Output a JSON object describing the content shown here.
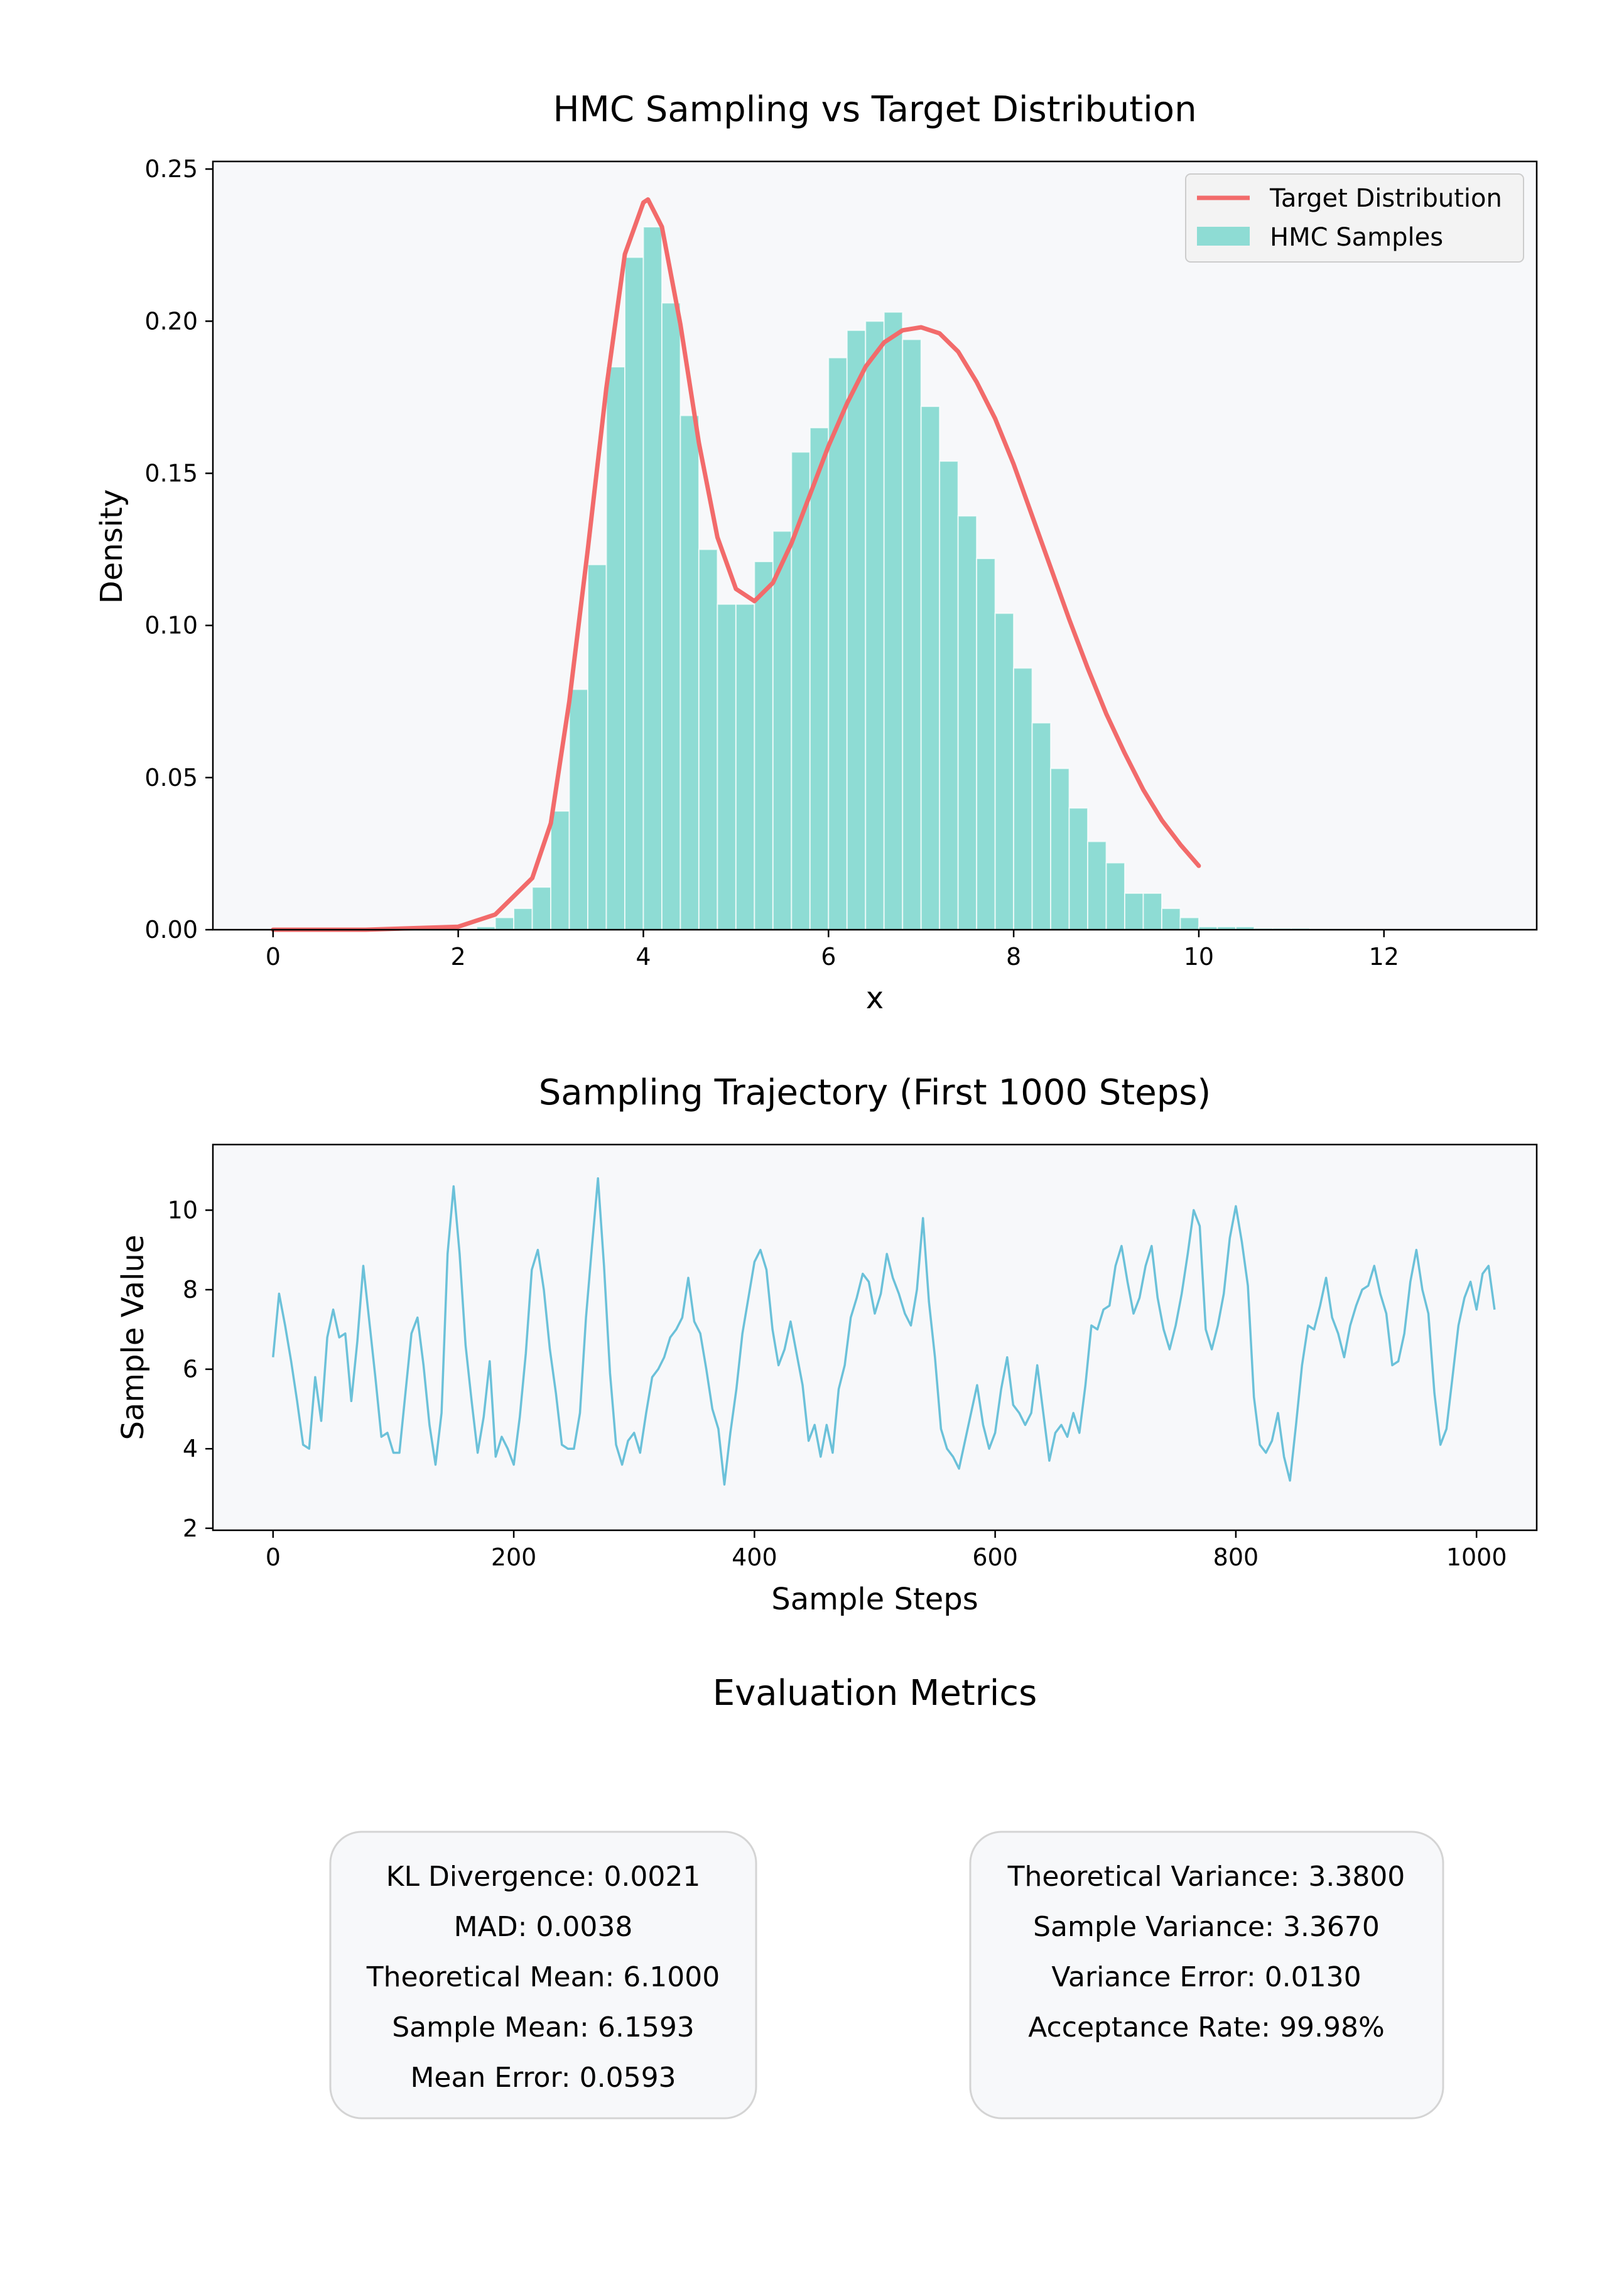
{
  "chart_data": [
    {
      "type": "bar",
      "title": "HMC Sampling vs Target Distribution",
      "xlabel": "x",
      "ylabel": "Density",
      "xlim": [
        -0.65,
        13.65
      ],
      "ylim": [
        0,
        0.2525
      ],
      "xticks": [
        0,
        2,
        4,
        6,
        8,
        10,
        12
      ],
      "yticks": [
        0.0,
        0.05,
        0.1,
        0.15,
        0.2,
        0.25
      ],
      "grid": false,
      "legend": {
        "placement": "top-right",
        "entries": [
          "Target Distribution",
          "HMC Samples"
        ]
      },
      "colors": {
        "histogram": "#8edcd4",
        "target": "#f26b6b",
        "axes_bg": "#f7f8fa"
      },
      "histogram": {
        "name": "HMC Samples",
        "bin_edges": [
          2.2,
          2.4,
          2.6,
          2.8,
          3.0,
          3.2,
          3.4,
          3.6,
          3.8,
          4.0,
          4.2,
          4.4,
          4.6,
          4.8,
          5.0,
          5.2,
          5.4,
          5.6,
          5.8,
          6.0,
          6.2,
          6.4,
          6.6,
          6.8,
          7.0,
          7.2,
          7.4,
          7.6,
          7.8,
          8.0,
          8.2,
          8.4,
          8.6,
          8.8,
          9.0,
          9.2,
          9.4,
          9.6,
          9.8,
          10.0,
          10.2,
          10.4,
          10.6,
          10.8,
          11.0,
          11.2,
          11.4,
          11.6,
          11.8,
          12.0
        ],
        "density": [
          0.001,
          0.004,
          0.007,
          0.014,
          0.039,
          0.079,
          0.12,
          0.185,
          0.221,
          0.231,
          0.206,
          0.169,
          0.125,
          0.107,
          0.107,
          0.121,
          0.131,
          0.157,
          0.165,
          0.188,
          0.197,
          0.2,
          0.203,
          0.194,
          0.172,
          0.154,
          0.136,
          0.122,
          0.104,
          0.086,
          0.068,
          0.053,
          0.04,
          0.029,
          0.022,
          0.012,
          0.012,
          0.007,
          0.004,
          0.001,
          0.001,
          0.001,
          0.0005,
          0.0005,
          0.0005,
          0.0003,
          0.0003,
          0.0003,
          0.0002
        ]
      },
      "target": {
        "name": "Target Distribution",
        "x": [
          0.0,
          1.0,
          2.0,
          2.4,
          2.8,
          3.0,
          3.2,
          3.4,
          3.6,
          3.8,
          4.0,
          4.05,
          4.2,
          4.4,
          4.6,
          4.8,
          5.0,
          5.2,
          5.4,
          5.6,
          5.8,
          6.0,
          6.2,
          6.4,
          6.6,
          6.8,
          7.0,
          7.2,
          7.4,
          7.6,
          7.8,
          8.0,
          8.2,
          8.4,
          8.6,
          8.8,
          9.0,
          9.2,
          9.4,
          9.6,
          9.8,
          10.0
        ],
        "y": [
          0.0,
          0.0,
          0.001,
          0.005,
          0.017,
          0.035,
          0.075,
          0.125,
          0.178,
          0.222,
          0.239,
          0.24,
          0.231,
          0.199,
          0.16,
          0.129,
          0.112,
          0.108,
          0.114,
          0.127,
          0.143,
          0.159,
          0.173,
          0.185,
          0.193,
          0.197,
          0.198,
          0.196,
          0.19,
          0.18,
          0.168,
          0.153,
          0.136,
          0.119,
          0.102,
          0.086,
          0.071,
          0.058,
          0.046,
          0.036,
          0.028,
          0.021
        ]
      }
    },
    {
      "type": "line",
      "title": "Sampling Trajectory (First 1000 Steps)",
      "xlabel": "Sample Steps",
      "ylabel": "Sample Value",
      "xlim": [
        -50,
        1050
      ],
      "ylim": [
        1.95,
        11.65
      ],
      "xticks": [
        0,
        200,
        400,
        600,
        800,
        1000
      ],
      "yticks": [
        2,
        4,
        6,
        8,
        10
      ],
      "grid": false,
      "colors": {
        "line": "#6bc1d9",
        "axes_bg": "#f7f8fa"
      },
      "x_step": 5,
      "values": [
        6.3,
        7.9,
        7.1,
        6.2,
        5.2,
        4.1,
        4.0,
        5.8,
        4.7,
        6.8,
        7.5,
        6.8,
        6.9,
        5.2,
        6.7,
        8.6,
        7.2,
        5.8,
        4.3,
        4.4,
        3.9,
        3.9,
        5.4,
        6.9,
        7.3,
        6.1,
        4.6,
        3.6,
        4.9,
        8.9,
        10.6,
        8.9,
        6.6,
        5.2,
        3.9,
        4.8,
        6.2,
        3.8,
        4.3,
        4.0,
        3.6,
        4.8,
        6.4,
        8.5,
        9.0,
        8.0,
        6.5,
        5.4,
        4.1,
        4.0,
        4.0,
        4.9,
        7.3,
        9.1,
        10.8,
        8.6,
        5.9,
        4.1,
        3.6,
        4.2,
        4.4,
        3.9,
        4.9,
        5.8,
        6.0,
        6.3,
        6.8,
        7.0,
        7.3,
        8.3,
        7.2,
        6.9,
        6.0,
        5.0,
        4.5,
        3.1,
        4.4,
        5.5,
        6.9,
        7.8,
        8.7,
        9.0,
        8.5,
        7.0,
        6.1,
        6.5,
        7.2,
        6.4,
        5.6,
        4.2,
        4.6,
        3.8,
        4.6,
        3.9,
        5.5,
        6.1,
        7.3,
        7.8,
        8.4,
        8.2,
        7.4,
        7.9,
        8.9,
        8.3,
        7.9,
        7.4,
        7.1,
        8.0,
        9.8,
        7.7,
        6.3,
        4.5,
        4.0,
        3.8,
        3.5,
        4.2,
        4.9,
        5.6,
        4.6,
        4.0,
        4.4,
        5.5,
        6.3,
        5.1,
        4.9,
        4.6,
        4.9,
        6.1,
        4.9,
        3.7,
        4.4,
        4.6,
        4.3,
        4.9,
        4.4,
        5.6,
        7.1,
        7.0,
        7.5,
        7.6,
        8.6,
        9.1,
        8.2,
        7.4,
        7.8,
        8.6,
        9.1,
        7.8,
        7.0,
        6.5,
        7.1,
        7.9,
        8.9,
        10.0,
        9.6,
        7.0,
        6.5,
        7.1,
        7.9,
        9.3,
        10.1,
        9.2,
        8.1,
        5.3,
        4.1,
        3.9,
        4.2,
        4.9,
        3.8,
        3.2,
        4.6,
        6.1,
        7.1,
        7.0,
        7.6,
        8.3,
        7.3,
        6.9,
        6.3,
        7.1,
        7.6,
        8.0,
        8.1,
        8.6,
        7.9,
        7.4,
        6.1,
        6.2,
        6.9,
        8.2,
        9.0,
        8.0,
        7.4,
        5.4,
        4.1,
        4.5,
        5.8,
        7.1,
        7.8,
        8.2,
        7.5,
        8.4,
        8.6,
        7.5
      ]
    }
  ],
  "metrics": {
    "title": "Evaluation Metrics",
    "left_box": [
      "KL Divergence: 0.0021",
      "MAD: 0.0038",
      "Theoretical Mean: 6.1000",
      "Sample Mean: 6.1593",
      "Mean Error: 0.0593"
    ],
    "right_box": [
      "Theoretical Variance: 3.3800",
      "Sample Variance: 3.3670",
      "Variance Error: 0.0130",
      "Acceptance Rate: 99.98%"
    ]
  }
}
